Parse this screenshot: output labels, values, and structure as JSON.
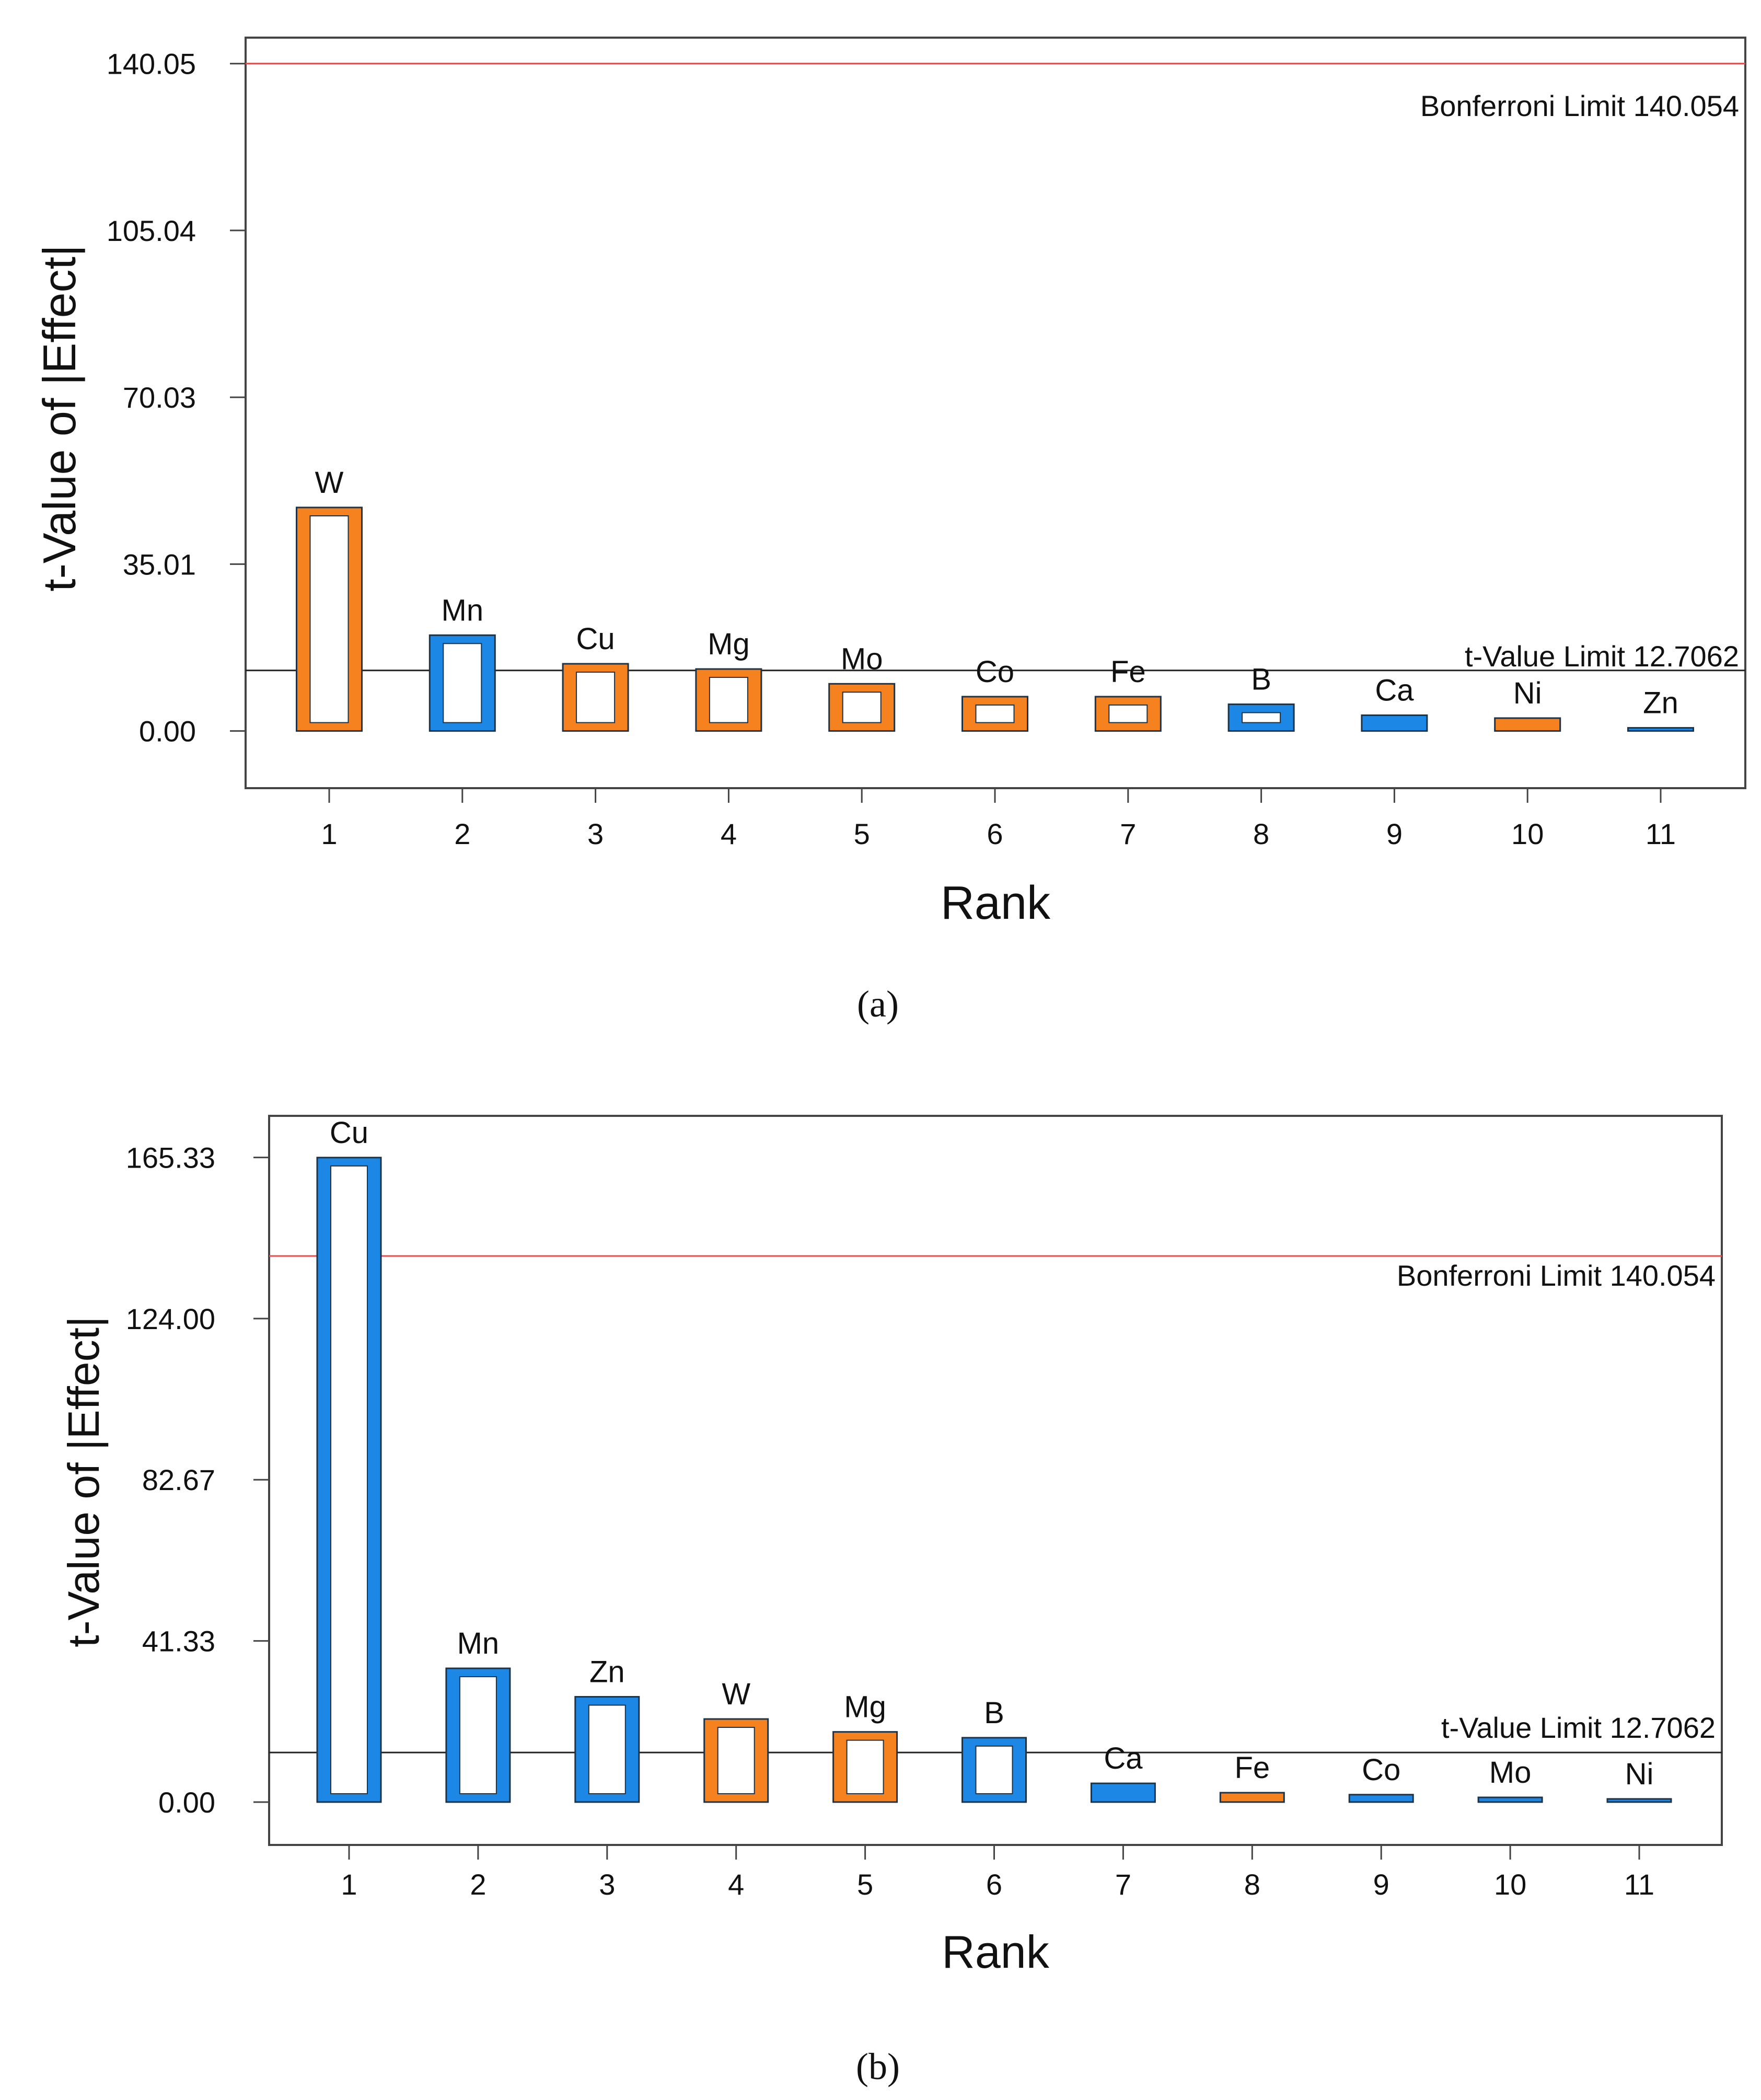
{
  "colors": {
    "orange": "#f5821f",
    "blue": "#1c87e5",
    "edge": "#1f3347",
    "bonferroni": "#e05050",
    "tlimit": "#222222",
    "frame": "#444444"
  },
  "chart_data": [
    {
      "type": "bar",
      "caption": "(a)",
      "xlabel": "Rank",
      "ylabel": "t-Value of |Effect|",
      "ylim": [
        -12.0,
        145.5
      ],
      "yticks": [
        "0.00",
        "35.01",
        "70.03",
        "105.04",
        "140.05"
      ],
      "ytick_values": [
        0.0,
        35.01,
        70.03,
        105.04,
        140.05
      ],
      "categories": [
        "1",
        "2",
        "3",
        "4",
        "5",
        "6",
        "7",
        "8",
        "9",
        "10",
        "11"
      ],
      "names": [
        "W",
        "Mn",
        "Cu",
        "Mg",
        "Mo",
        "Co",
        "Fe",
        "B",
        "Ca",
        "Ni",
        "Zn"
      ],
      "values": [
        46.9,
        20.1,
        14.1,
        13.0,
        9.9,
        7.2,
        7.2,
        5.6,
        3.3,
        2.7,
        0.6
      ],
      "bar_colors": [
        "orange",
        "blue",
        "orange",
        "orange",
        "orange",
        "orange",
        "orange",
        "blue",
        "blue",
        "orange",
        "blue"
      ],
      "bonferroni": {
        "value": 140.054,
        "label": "Bonferroni Limit 140.054"
      },
      "tlimit": {
        "value": 12.7062,
        "label": "t-Value Limit 12.7062"
      }
    },
    {
      "type": "bar",
      "caption": "(b)",
      "xlabel": "Rank",
      "ylabel": "t-Value of |Effect|",
      "ylim": [
        -11.0,
        176.0
      ],
      "yticks": [
        "0.00",
        "41.33",
        "82.67",
        "124.00",
        "165.33"
      ],
      "ytick_values": [
        0.0,
        41.33,
        82.67,
        124.0,
        165.33
      ],
      "categories": [
        "1",
        "2",
        "3",
        "4",
        "5",
        "6",
        "7",
        "8",
        "9",
        "10",
        "11"
      ],
      "names": [
        "Cu",
        "Mn",
        "Zn",
        "W",
        "Mg",
        "B",
        "Ca",
        "Fe",
        "Co",
        "Mo",
        "Ni"
      ],
      "values": [
        165.3,
        34.3,
        27.0,
        21.3,
        18.0,
        16.5,
        4.8,
        2.4,
        1.9,
        1.2,
        0.4
      ],
      "bar_colors": [
        "blue",
        "blue",
        "blue",
        "orange",
        "orange",
        "blue",
        "blue",
        "orange",
        "blue",
        "blue",
        "blue"
      ],
      "bonferroni": {
        "value": 140.054,
        "label": "Bonferroni Limit 140.054"
      },
      "tlimit": {
        "value": 12.7062,
        "label": "t-Value Limit 12.7062"
      }
    }
  ]
}
